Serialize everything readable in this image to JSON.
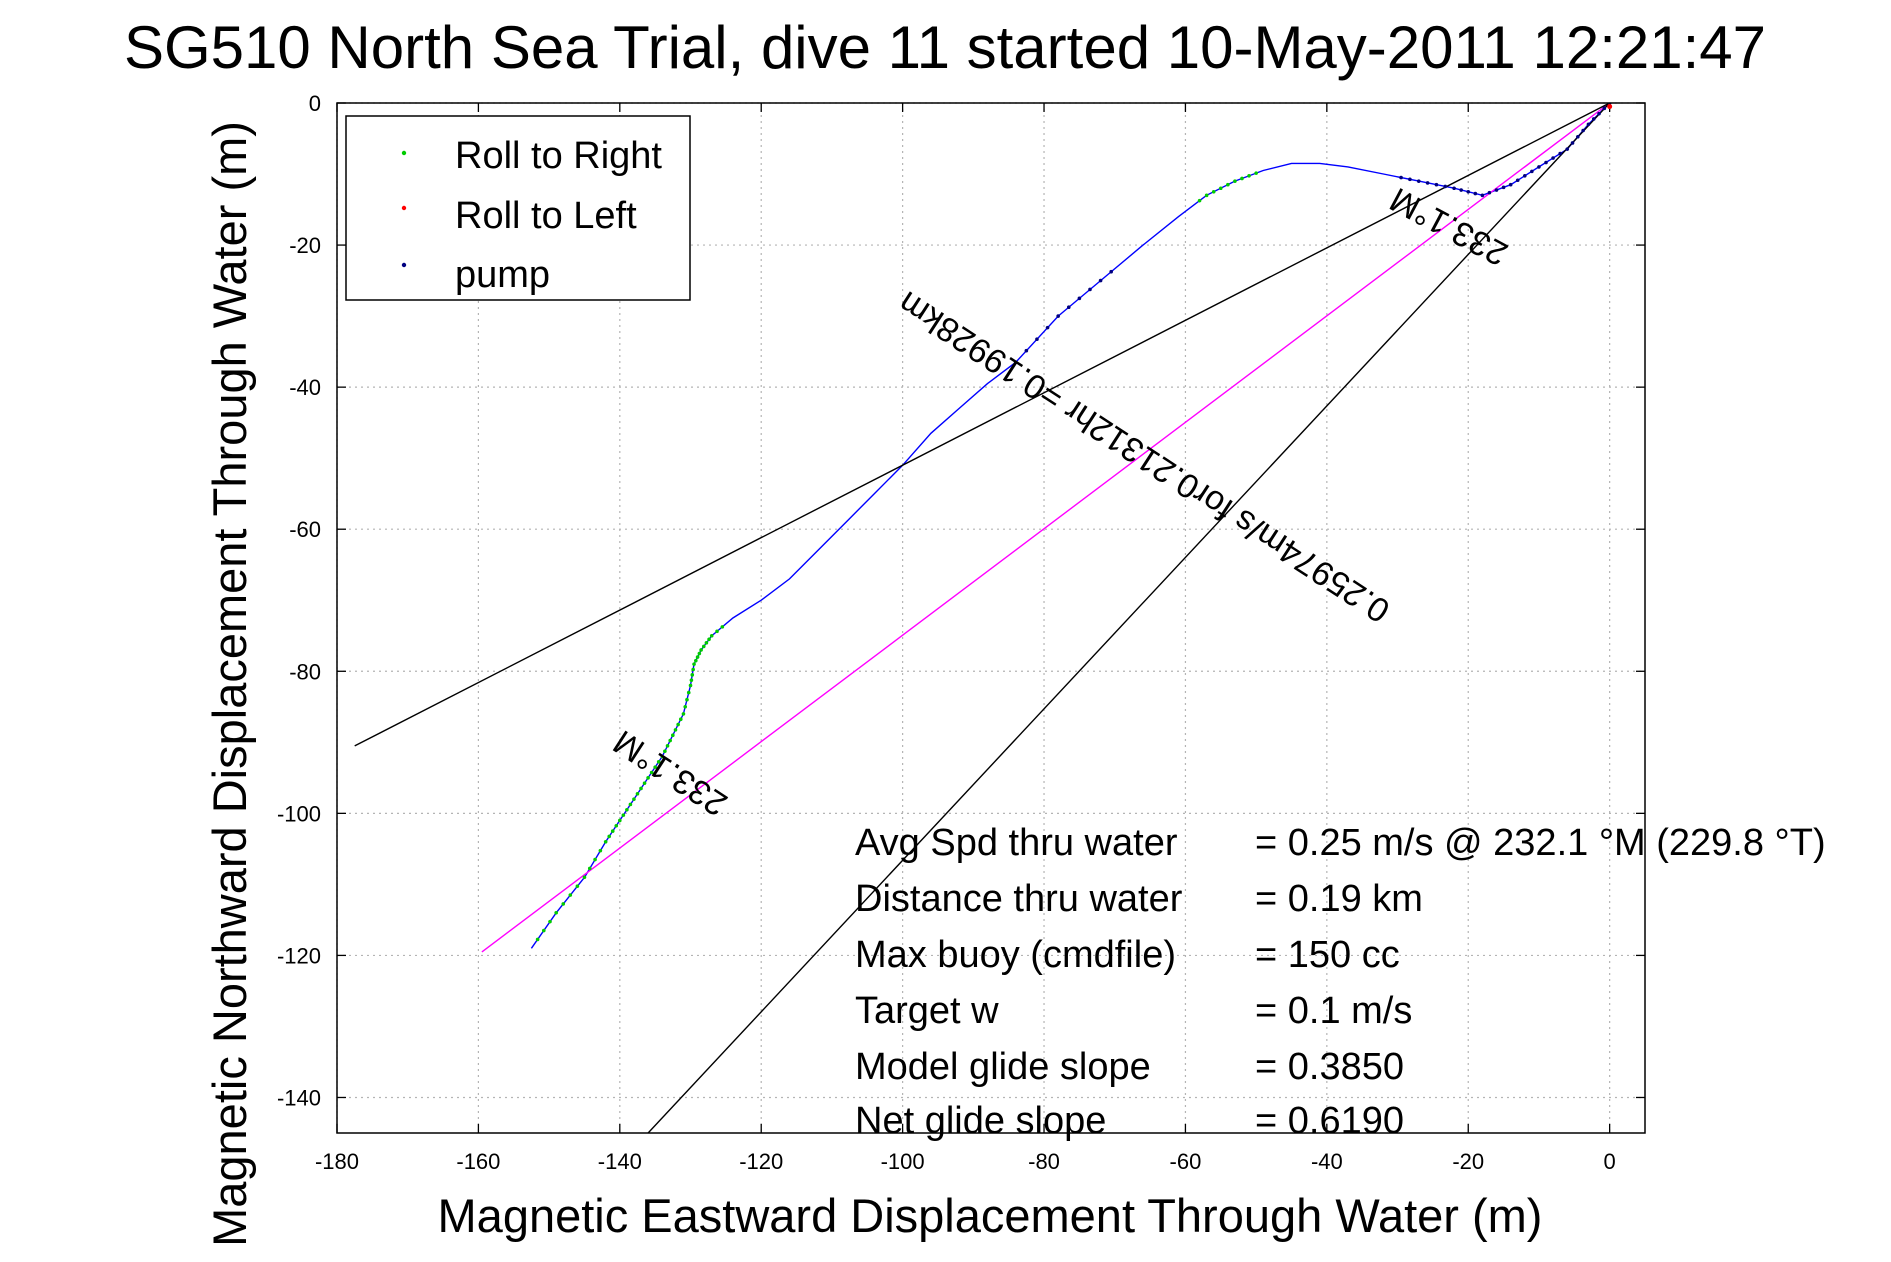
{
  "chart_data": {
    "type": "line",
    "title": "SG510 North Sea Trial, dive 11 started 10-May-2011 12:21:47",
    "xlabel": "Magnetic Eastward Displacement Through Water (m)",
    "ylabel": "Magnetic Northward Displacement Through Water (m)",
    "xlim": [
      -180,
      5
    ],
    "ylim": [
      -145,
      0
    ],
    "xticks": [
      -180,
      -160,
      -140,
      -120,
      -100,
      -80,
      -60,
      -40,
      -20,
      0
    ],
    "yticks": [
      0,
      -20,
      -40,
      -60,
      -80,
      -100,
      -120,
      -140
    ],
    "grid": true,
    "legend": {
      "placement": "top-left",
      "entries": [
        {
          "label": "Roll to Right",
          "color": "#00cc00"
        },
        {
          "label": "Roll to Left",
          "color": "#ff0000"
        },
        {
          "label": "pump",
          "color": "#000080"
        }
      ]
    },
    "series": [
      {
        "color": "#0000ff",
        "x": [
          0,
          -3,
          -6,
          -10,
          -14,
          -18,
          -22,
          -27,
          -32,
          -37,
          -41,
          -45,
          -49,
          -53,
          -57,
          -61,
          -66,
          -72,
          -78,
          -84,
          -88,
          -92,
          -96,
          -100,
          -104,
          -108,
          -112,
          -116,
          -120,
          -124,
          -127,
          -128.5,
          -129.5,
          -130,
          -131,
          -132.5,
          -134,
          -136,
          -138,
          -140,
          -142,
          -145,
          -149,
          -152.5
        ],
        "y": [
          0,
          -3,
          -6.5,
          -9,
          -11.5,
          -13,
          -12,
          -11,
          -10,
          -9,
          -8.5,
          -8.5,
          -9.5,
          -11,
          -13,
          -16,
          -20,
          -25,
          -30,
          -36.5,
          -39.5,
          -43,
          -46.5,
          -51,
          -55,
          -59,
          -63,
          -67,
          -70,
          -72.5,
          -75,
          -77,
          -79,
          -82,
          -86,
          -89,
          -92,
          -95,
          -98,
          -101,
          -104,
          -109,
          -114,
          -119
        ]
      },
      {
        "color": "#ff00ff",
        "x": [
          0,
          -159.5
        ],
        "y": [
          0,
          -119.5
        ]
      },
      {
        "color": "#000000",
        "x": [
          0,
          -177.5
        ],
        "y": [
          0,
          -90.5
        ]
      },
      {
        "color": "#000000",
        "x": [
          0,
          -136
        ],
        "y": [
          0,
          -145
        ]
      }
    ],
    "annotations": [
      {
        "text": "233.1°M",
        "x": -22,
        "y": -16,
        "rotate": 208
      },
      {
        "text": "0.25974m/s for0.21312hr =0.19928km",
        "x": -65,
        "y": -48.5,
        "rotate": 213
      },
      {
        "text": "233.1°M",
        "x": -132,
        "y": -93,
        "rotate": 213
      }
    ],
    "stats": [
      {
        "label": "Avg Spd thru water",
        "value": "=  0.25 m/s @ 232.1 °M (229.8 °T)"
      },
      {
        "label": "Distance thru water",
        "value": "=  0.19 km"
      },
      {
        "label": "Max buoy (cmdfile)",
        "value": "= 150 cc"
      },
      {
        "label": "Target w",
        "value": "= 0.1 m/s"
      },
      {
        "label": "Model glide slope",
        "value": "= 0.3850"
      },
      {
        "label": "Net glide slope",
        "value": "= 0.6190"
      }
    ]
  }
}
